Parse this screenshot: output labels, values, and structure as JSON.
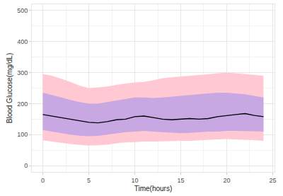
{
  "chart_data": {
    "type": "line",
    "x_label": "Time(hours)",
    "y_label": "Blood Glucose(mg/dL)",
    "x": [
      0,
      1,
      2,
      3,
      4,
      5,
      6,
      7,
      8,
      9,
      10,
      11,
      12,
      13,
      14,
      15,
      16,
      17,
      18,
      19,
      20,
      21,
      22,
      23,
      24
    ],
    "series": [
      {
        "color": "#000000",
        "values": [
          165,
          160,
          155,
          150,
          145,
          140,
          138,
          142,
          148,
          150,
          158,
          160,
          155,
          150,
          148,
          150,
          152,
          150,
          152,
          158,
          162,
          165,
          168,
          162,
          158
        ]
      }
    ],
    "bands": [
      {
        "color": "#ffc8d2",
        "upper": [
          295,
          290,
          280,
          270,
          258,
          250,
          252,
          255,
          260,
          265,
          268,
          270,
          275,
          282,
          285,
          288,
          290,
          292,
          295,
          298,
          300,
          298,
          296,
          293,
          290
        ],
        "lower": [
          82,
          78,
          73,
          70,
          67,
          65,
          66,
          68,
          72,
          75,
          76,
          78,
          78,
          79,
          80,
          80,
          80,
          82,
          84,
          85,
          86,
          85,
          84,
          82,
          80
        ]
      },
      {
        "color": "#c7a8e2",
        "upper": [
          235,
          228,
          220,
          212,
          205,
          200,
          200,
          205,
          210,
          215,
          220,
          220,
          218,
          220,
          222,
          225,
          228,
          230,
          232,
          235,
          235,
          233,
          230,
          225,
          220
        ],
        "lower": [
          115,
          110,
          105,
          100,
          97,
          95,
          96,
          100,
          105,
          108,
          110,
          112,
          110,
          108,
          106,
          105,
          106,
          108,
          110,
          110,
          112,
          112,
          112,
          111,
          110
        ]
      }
    ],
    "xlim": [
      -1.2,
      25.2
    ],
    "ylim": [
      -20,
      520
    ],
    "xticks": [
      0,
      5,
      10,
      15,
      20,
      25
    ],
    "yticks": [
      0,
      100,
      200,
      300,
      400,
      500
    ],
    "grid": true
  }
}
